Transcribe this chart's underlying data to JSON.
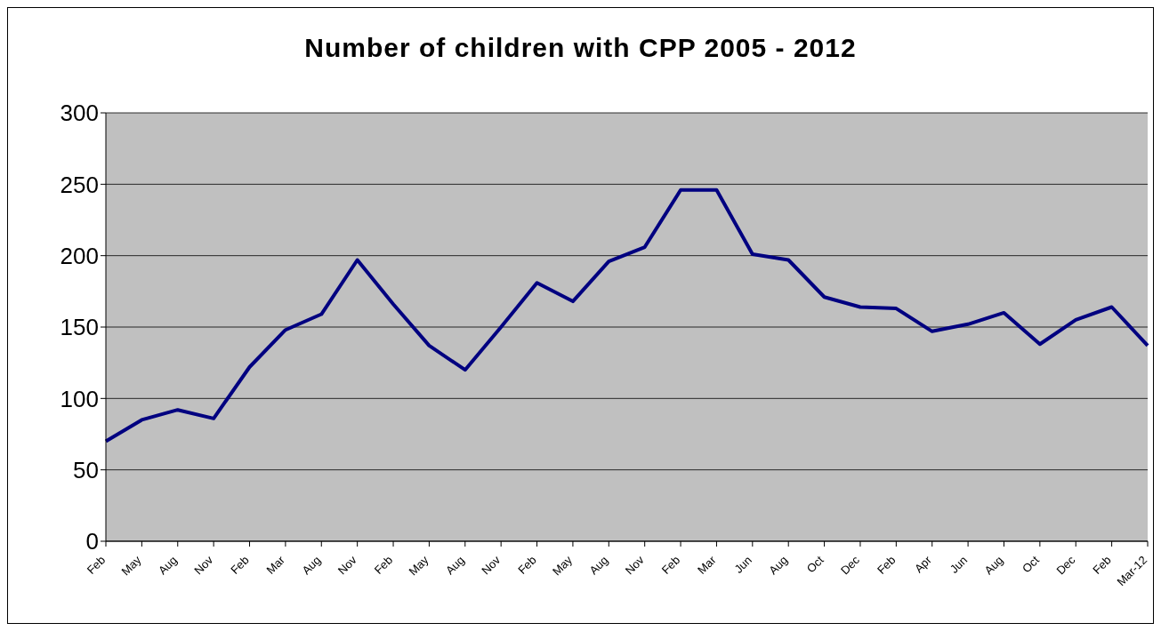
{
  "chart_data": {
    "type": "line",
    "title": "Number of children with CPP 2005 - 2012",
    "categories": [
      "Feb",
      "May",
      "Aug",
      "Nov",
      "Feb",
      "Mar",
      "Aug",
      "Nov",
      "Feb",
      "May",
      "Aug",
      "Nov",
      "Feb",
      "May",
      "Aug",
      "Nov",
      "Feb",
      "Mar",
      "Jun",
      "Aug",
      "Oct",
      "Dec",
      "Feb",
      "Apr",
      "Jun",
      "Aug",
      "Oct",
      "Dec",
      "Feb",
      "Mar-12"
    ],
    "series": [
      {
        "color": "#000080",
        "values": [
          70,
          85,
          92,
          86,
          122,
          148,
          159,
          197,
          166,
          137,
          120,
          150,
          181,
          168,
          196,
          206,
          246,
          246,
          201,
          197,
          171,
          164,
          163,
          147,
          152,
          160,
          138,
          155,
          164,
          137
        ]
      }
    ],
    "ylim": [
      0,
      300
    ],
    "yticks": [
      0,
      50,
      100,
      150,
      200,
      250,
      300
    ],
    "grid": "y",
    "legend": false,
    "marker": "none",
    "line_style": "solid"
  }
}
